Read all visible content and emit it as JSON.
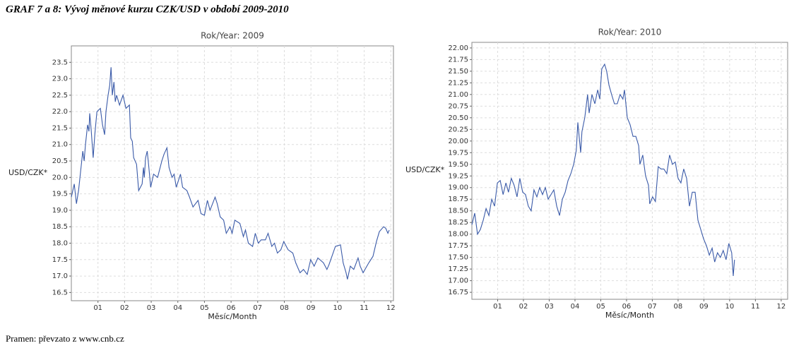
{
  "header": {
    "title": "GRAF 7 a 8: Vývoj měnové kurzu CZK/USD v období 2009-2010"
  },
  "footer": {
    "source": "Pramen: převzato z www.cnb.cz"
  },
  "chart_data": [
    {
      "type": "line",
      "title": "Rok/Year: 2009",
      "xlabel": "Měsíc/Month",
      "ylabel": "USD/CZK*",
      "grid": true,
      "xlim": [
        0,
        12.1
      ],
      "ylim": [
        16.25,
        24.0
      ],
      "xticks": [
        {
          "value": 1,
          "label": "01"
        },
        {
          "value": 2,
          "label": "02"
        },
        {
          "value": 3,
          "label": "03"
        },
        {
          "value": 4,
          "label": "04"
        },
        {
          "value": 5,
          "label": "05"
        },
        {
          "value": 6,
          "label": "06"
        },
        {
          "value": 7,
          "label": "07"
        },
        {
          "value": 8,
          "label": "08"
        },
        {
          "value": 9,
          "label": "09"
        },
        {
          "value": 10,
          "label": "10"
        },
        {
          "value": 11,
          "label": "11"
        },
        {
          "value": 12,
          "label": "12"
        }
      ],
      "yticks": [
        16.5,
        {
          "value": 17,
          "label": "17.0"
        },
        17.5,
        {
          "value": 18,
          "label": "18.0"
        },
        18.5,
        {
          "value": 19,
          "label": "19.0"
        },
        19.5,
        {
          "value": 20,
          "label": "20.0"
        },
        20.5,
        {
          "value": 21,
          "label": "21.0"
        },
        21.5,
        {
          "value": 22,
          "label": "22.0"
        },
        22.5,
        {
          "value": 23,
          "label": "23.0"
        },
        23.5
      ],
      "series": [
        {
          "name": "USD/CZK",
          "color": "#3a5aa8",
          "x": [
            0,
            0.11,
            0.19,
            0.27,
            0.35,
            0.43,
            0.48,
            0.53,
            0.61,
            0.66,
            0.69,
            0.74,
            0.82,
            0.88,
            0.96,
            1.09,
            1.17,
            1.25,
            1.3,
            1.38,
            1.44,
            1.49,
            1.54,
            1.6,
            1.65,
            1.7,
            1.81,
            1.94,
            2.05,
            2.18,
            2.23,
            2.29,
            2.34,
            2.45,
            2.53,
            2.66,
            2.71,
            2.74,
            2.79,
            2.85,
            2.9,
            2.98,
            3.09,
            3.24,
            3.4,
            3.48,
            3.59,
            3.67,
            3.78,
            3.86,
            3.94,
            4.1,
            4.18,
            4.34,
            4.44,
            4.57,
            4.76,
            4.87,
            5.0,
            5.11,
            5.21,
            5.4,
            5.48,
            5.59,
            5.72,
            5.82,
            5.96,
            6.04,
            6.14,
            6.33,
            6.46,
            6.54,
            6.65,
            6.81,
            6.91,
            7.02,
            7.13,
            7.29,
            7.39,
            7.53,
            7.63,
            7.74,
            7.87,
            7.98,
            8.14,
            8.32,
            8.43,
            8.59,
            8.72,
            8.86,
            8.99,
            9.12,
            9.26,
            9.47,
            9.6,
            9.68,
            9.79,
            9.92,
            10.11,
            10.21,
            10.32,
            10.37,
            10.48,
            10.61,
            10.77,
            10.85,
            10.96,
            11.17,
            11.33,
            11.46,
            11.57,
            11.73,
            11.81,
            11.89,
            11.94
          ],
          "values": [
            19.4,
            19.8,
            19.2,
            19.6,
            20.2,
            20.8,
            20.5,
            21.0,
            21.6,
            21.4,
            21.95,
            21.5,
            20.6,
            21.3,
            22.0,
            22.1,
            21.6,
            21.3,
            22.0,
            22.5,
            22.8,
            23.35,
            22.5,
            22.9,
            22.3,
            22.5,
            22.2,
            22.5,
            22.1,
            22.2,
            21.2,
            21.1,
            20.6,
            20.4,
            19.6,
            19.8,
            20.3,
            20.0,
            20.6,
            20.8,
            20.4,
            19.7,
            20.1,
            20.0,
            20.5,
            20.7,
            20.9,
            20.3,
            20.0,
            20.1,
            19.7,
            20.1,
            19.7,
            19.6,
            19.4,
            19.1,
            19.3,
            18.9,
            18.85,
            19.3,
            19.0,
            19.4,
            19.2,
            18.8,
            18.7,
            18.3,
            18.5,
            18.3,
            18.7,
            18.6,
            18.2,
            18.4,
            18.0,
            17.9,
            18.3,
            18.0,
            18.1,
            18.1,
            18.3,
            17.9,
            18.0,
            17.7,
            17.8,
            18.05,
            17.8,
            17.7,
            17.4,
            17.1,
            17.2,
            17.05,
            17.5,
            17.3,
            17.55,
            17.4,
            17.2,
            17.35,
            17.6,
            17.9,
            17.95,
            17.4,
            17.1,
            16.9,
            17.3,
            17.2,
            17.55,
            17.3,
            17.1,
            17.4,
            17.6,
            18.05,
            18.35,
            18.5,
            18.45,
            18.3,
            18.4
          ]
        }
      ]
    },
    {
      "type": "line",
      "title": "Rok/Year: 2010",
      "xlabel": "Měsíc/Month",
      "ylabel": "USD/CZK*",
      "grid": true,
      "xlim": [
        0,
        12.25
      ],
      "ylim": [
        16.6,
        22.12
      ],
      "xticks": [
        {
          "value": 1,
          "label": "01"
        },
        {
          "value": 2,
          "label": "02"
        },
        {
          "value": 3,
          "label": "03"
        },
        {
          "value": 4,
          "label": "04"
        },
        {
          "value": 5,
          "label": "05"
        },
        {
          "value": 6,
          "label": "06"
        },
        {
          "value": 7,
          "label": "07"
        },
        {
          "value": 8,
          "label": "08"
        },
        {
          "value": 9,
          "label": "09"
        },
        {
          "value": 10,
          "label": "10"
        },
        {
          "value": 11,
          "label": "11"
        },
        {
          "value": 12,
          "label": "12"
        }
      ],
      "yticks": [
        16.75,
        {
          "value": 17,
          "label": "17.00"
        },
        17.25,
        {
          "value": 17.5,
          "label": "17.50"
        },
        17.75,
        {
          "value": 18,
          "label": "18.00"
        },
        18.25,
        {
          "value": 18.5,
          "label": "18.50"
        },
        18.75,
        {
          "value": 19,
          "label": "19.00"
        },
        19.25,
        {
          "value": 19.5,
          "label": "19.50"
        },
        19.75,
        {
          "value": 20,
          "label": "20.00"
        },
        20.25,
        {
          "value": 20.5,
          "label": "20.50"
        },
        20.75,
        {
          "value": 21,
          "label": "21.00"
        },
        21.25,
        {
          "value": 21.5,
          "label": "21.50"
        },
        21.75,
        {
          "value": 22,
          "label": "22.00"
        }
      ],
      "series": [
        {
          "name": "USD/CZK",
          "color": "#3a5aa8",
          "x": [
            0,
            0.11,
            0.22,
            0.33,
            0.44,
            0.55,
            0.66,
            0.77,
            0.88,
            0.99,
            1.1,
            1.21,
            1.32,
            1.42,
            1.53,
            1.64,
            1.75,
            1.86,
            1.97,
            2.08,
            2.19,
            2.3,
            2.41,
            2.52,
            2.63,
            2.74,
            2.85,
            2.96,
            3.07,
            3.18,
            3.29,
            3.4,
            3.51,
            3.62,
            3.73,
            3.84,
            3.95,
            4.05,
            4.11,
            4.22,
            4.27,
            4.38,
            4.49,
            4.55,
            4.66,
            4.77,
            4.88,
            4.96,
            5.04,
            5.15,
            5.23,
            5.32,
            5.42,
            5.53,
            5.64,
            5.75,
            5.86,
            5.92,
            6.03,
            6.14,
            6.25,
            6.36,
            6.47,
            6.52,
            6.63,
            6.74,
            6.85,
            6.9,
            7.01,
            7.12,
            7.23,
            7.34,
            7.45,
            7.56,
            7.67,
            7.78,
            7.89,
            8.0,
            8.11,
            8.22,
            8.33,
            8.44,
            8.55,
            8.66,
            8.77,
            8.88,
            8.99,
            9.1,
            9.21,
            9.32,
            9.42,
            9.53,
            9.64,
            9.75,
            9.86,
            9.97,
            10.08,
            10.14,
            10.19
          ],
          "values": [
            18.2,
            18.45,
            18.0,
            18.1,
            18.3,
            18.55,
            18.4,
            18.75,
            18.6,
            19.1,
            19.15,
            18.85,
            19.1,
            18.9,
            19.2,
            19.05,
            18.8,
            19.2,
            18.9,
            18.85,
            18.6,
            18.5,
            18.95,
            18.8,
            19.0,
            18.85,
            19.0,
            18.75,
            18.85,
            18.95,
            18.6,
            18.4,
            18.75,
            18.9,
            19.15,
            19.3,
            19.5,
            19.8,
            20.4,
            19.75,
            20.2,
            20.5,
            21.0,
            20.6,
            21.0,
            20.8,
            21.1,
            20.9,
            21.55,
            21.65,
            21.5,
            21.2,
            21.0,
            20.8,
            20.8,
            21.0,
            20.9,
            21.1,
            20.5,
            20.35,
            20.1,
            20.1,
            19.9,
            19.5,
            19.7,
            19.25,
            19.05,
            18.65,
            18.8,
            18.7,
            19.45,
            19.4,
            19.4,
            19.3,
            19.7,
            19.5,
            19.55,
            19.2,
            19.1,
            19.4,
            19.2,
            18.6,
            18.9,
            18.9,
            18.3,
            18.1,
            17.9,
            17.75,
            17.55,
            17.7,
            17.4,
            17.6,
            17.5,
            17.65,
            17.45,
            17.8,
            17.6,
            17.1,
            17.45
          ]
        }
      ]
    }
  ]
}
